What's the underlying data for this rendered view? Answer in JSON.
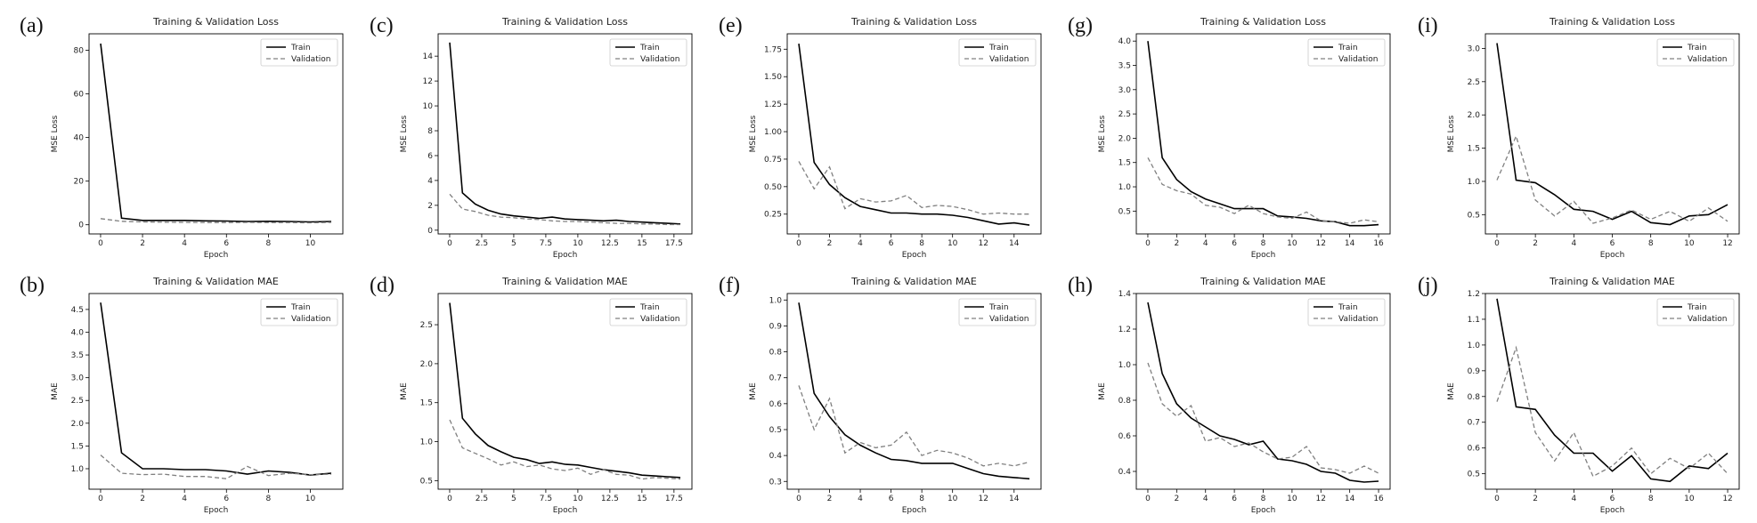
{
  "chart_data": [
    {
      "panel": "(a)",
      "type": "line",
      "title": "Training & Validation Loss",
      "xlabel": "Epoch",
      "ylabel": "MSE Loss",
      "xlim": [
        -0.55,
        11.55
      ],
      "ylim": [
        -4.2,
        87.5
      ],
      "xticks": [
        0,
        2,
        4,
        6,
        8,
        10
      ],
      "yticks": [
        0,
        20,
        40,
        60,
        80
      ],
      "tick_decimals": 0,
      "x": [
        0,
        1,
        2,
        3,
        4,
        5,
        6,
        7,
        8,
        9,
        10,
        11
      ],
      "series": [
        {
          "name": "Train",
          "style": "solid",
          "color": "#000000",
          "values": [
            83,
            3,
            2,
            2,
            2,
            1.8,
            1.7,
            1.5,
            1.6,
            1.5,
            1.3,
            1.5
          ]
        },
        {
          "name": "Validation",
          "style": "dashed",
          "color": "#808080",
          "values": [
            2.8,
            1.6,
            1.3,
            1.2,
            1.1,
            1.0,
            1.0,
            1.1,
            1.0,
            1.0,
            0.9,
            1.1
          ]
        }
      ],
      "legend": "top-right",
      "grid": false
    },
    {
      "panel": "(b)",
      "type": "line",
      "title": "Training & Validation MAE",
      "xlabel": "Epoch",
      "ylabel": "MAE",
      "xlim": [
        -0.55,
        11.55
      ],
      "ylim": [
        0.55,
        4.85
      ],
      "xticks": [
        0,
        2,
        4,
        6,
        8,
        10
      ],
      "yticks": [
        1.0,
        1.5,
        2.0,
        2.5,
        3.0,
        3.5,
        4.0,
        4.5
      ],
      "tick_decimals": 1,
      "x": [
        0,
        1,
        2,
        3,
        4,
        5,
        6,
        7,
        8,
        9,
        10,
        11
      ],
      "series": [
        {
          "name": "Train",
          "style": "solid",
          "color": "#000000",
          "values": [
            4.65,
            1.35,
            1.0,
            1.0,
            0.98,
            0.98,
            0.95,
            0.88,
            0.95,
            0.92,
            0.86,
            0.9
          ]
        },
        {
          "name": "Validation",
          "style": "dashed",
          "color": "#808080",
          "values": [
            1.3,
            0.9,
            0.87,
            0.88,
            0.83,
            0.83,
            0.78,
            1.05,
            0.85,
            0.9,
            0.87,
            0.88
          ]
        }
      ],
      "legend": "top-right",
      "grid": false
    },
    {
      "panel": "(c)",
      "type": "line",
      "title": "Training & Validation Loss",
      "xlabel": "Epoch",
      "ylabel": "MSE Loss",
      "xlim": [
        -0.9,
        18.9
      ],
      "ylim": [
        -0.3,
        15.8
      ],
      "xticks": [
        0,
        2.5,
        5,
        7.5,
        10,
        12.5,
        15,
        17.5
      ],
      "yticks": [
        0,
        2,
        4,
        6,
        8,
        10,
        12,
        14
      ],
      "tick_decimals": 0,
      "x": [
        0,
        1,
        2,
        3,
        4,
        5,
        6,
        7,
        8,
        9,
        10,
        11,
        12,
        13,
        14,
        15,
        16,
        17,
        18
      ],
      "series": [
        {
          "name": "Train",
          "style": "solid",
          "color": "#000000",
          "values": [
            15.1,
            3.0,
            2.1,
            1.6,
            1.3,
            1.15,
            1.05,
            0.95,
            1.05,
            0.9,
            0.85,
            0.8,
            0.75,
            0.8,
            0.7,
            0.65,
            0.6,
            0.55,
            0.5
          ]
        },
        {
          "name": "Validation",
          "style": "dashed",
          "color": "#808080",
          "values": [
            2.9,
            1.7,
            1.5,
            1.2,
            1.05,
            1.0,
            0.9,
            0.85,
            0.75,
            0.7,
            0.7,
            0.65,
            0.6,
            0.55,
            0.55,
            0.5,
            0.5,
            0.45,
            0.45
          ]
        }
      ],
      "legend": "top-right",
      "grid": false
    },
    {
      "panel": "(d)",
      "type": "line",
      "title": "Training & Validation MAE",
      "xlabel": "Epoch",
      "ylabel": "MAE",
      "xlim": [
        -0.9,
        18.9
      ],
      "ylim": [
        0.39,
        2.9
      ],
      "xticks": [
        0,
        2.5,
        5,
        7.5,
        10,
        12.5,
        15,
        17.5
      ],
      "yticks": [
        0.5,
        1.0,
        1.5,
        2.0,
        2.5
      ],
      "tick_decimals": 1,
      "x": [
        0,
        1,
        2,
        3,
        4,
        5,
        6,
        7,
        8,
        9,
        10,
        11,
        12,
        13,
        14,
        15,
        16,
        17,
        18
      ],
      "series": [
        {
          "name": "Train",
          "style": "solid",
          "color": "#000000",
          "values": [
            2.78,
            1.3,
            1.1,
            0.95,
            0.87,
            0.8,
            0.77,
            0.72,
            0.74,
            0.71,
            0.7,
            0.67,
            0.64,
            0.62,
            0.6,
            0.57,
            0.56,
            0.55,
            0.54
          ]
        },
        {
          "name": "Validation",
          "style": "dashed",
          "color": "#808080",
          "values": [
            1.28,
            0.92,
            0.85,
            0.78,
            0.7,
            0.74,
            0.68,
            0.7,
            0.65,
            0.63,
            0.66,
            0.58,
            0.64,
            0.58,
            0.57,
            0.52,
            0.54,
            0.53,
            0.52
          ]
        }
      ],
      "legend": "top-right",
      "grid": false
    },
    {
      "panel": "(e)",
      "type": "line",
      "title": "Training & Validation Loss",
      "xlabel": "Epoch",
      "ylabel": "MSE Loss",
      "xlim": [
        -0.75,
        15.75
      ],
      "ylim": [
        0.07,
        1.89
      ],
      "xticks": [
        0,
        2,
        4,
        6,
        8,
        10,
        12,
        14
      ],
      "yticks": [
        0.25,
        0.5,
        0.75,
        1.0,
        1.25,
        1.5,
        1.75
      ],
      "tick_decimals": 2,
      "x": [
        0,
        1,
        2,
        3,
        4,
        5,
        6,
        7,
        8,
        9,
        10,
        11,
        12,
        13,
        14,
        15
      ],
      "series": [
        {
          "name": "Train",
          "style": "solid",
          "color": "#000000",
          "values": [
            1.8,
            0.72,
            0.52,
            0.4,
            0.32,
            0.29,
            0.26,
            0.26,
            0.25,
            0.25,
            0.24,
            0.22,
            0.19,
            0.16,
            0.17,
            0.15
          ]
        },
        {
          "name": "Validation",
          "style": "dashed",
          "color": "#808080",
          "values": [
            0.73,
            0.48,
            0.68,
            0.3,
            0.39,
            0.36,
            0.37,
            0.42,
            0.31,
            0.33,
            0.32,
            0.29,
            0.25,
            0.26,
            0.25,
            0.25
          ]
        }
      ],
      "legend": "top-right",
      "grid": false
    },
    {
      "panel": "(f)",
      "type": "line",
      "title": "Training & Validation MAE",
      "xlabel": "Epoch",
      "ylabel": "MAE",
      "xlim": [
        -0.75,
        15.75
      ],
      "ylim": [
        0.27,
        1.025
      ],
      "xticks": [
        0,
        2,
        4,
        6,
        8,
        10,
        12,
        14
      ],
      "yticks": [
        0.3,
        0.4,
        0.5,
        0.6,
        0.7,
        0.8,
        0.9,
        1.0
      ],
      "tick_decimals": 1,
      "x": [
        0,
        1,
        2,
        3,
        4,
        5,
        6,
        7,
        8,
        9,
        10,
        11,
        12,
        13,
        14,
        15
      ],
      "series": [
        {
          "name": "Train",
          "style": "solid",
          "color": "#000000",
          "values": [
            0.99,
            0.64,
            0.55,
            0.48,
            0.44,
            0.41,
            0.385,
            0.38,
            0.37,
            0.37,
            0.37,
            0.35,
            0.33,
            0.32,
            0.315,
            0.31
          ]
        },
        {
          "name": "Validation",
          "style": "dashed",
          "color": "#808080",
          "values": [
            0.67,
            0.5,
            0.62,
            0.41,
            0.45,
            0.43,
            0.44,
            0.49,
            0.4,
            0.42,
            0.41,
            0.39,
            0.36,
            0.37,
            0.36,
            0.375
          ]
        }
      ],
      "legend": "top-right",
      "grid": false
    },
    {
      "panel": "(g)",
      "type": "line",
      "title": "Training & Validation Loss",
      "xlabel": "Epoch",
      "ylabel": "MSE Loss",
      "xlim": [
        -0.8,
        16.8
      ],
      "ylim": [
        0.03,
        4.15
      ],
      "xticks": [
        0,
        2,
        4,
        6,
        8,
        10,
        12,
        14,
        16
      ],
      "yticks": [
        0.5,
        1.0,
        1.5,
        2.0,
        2.5,
        3.0,
        3.5,
        4.0
      ],
      "tick_decimals": 1,
      "x": [
        0,
        1,
        2,
        3,
        4,
        5,
        6,
        7,
        8,
        9,
        10,
        11,
        12,
        13,
        14,
        15,
        16
      ],
      "series": [
        {
          "name": "Train",
          "style": "solid",
          "color": "#000000",
          "values": [
            4.0,
            1.6,
            1.15,
            0.9,
            0.75,
            0.65,
            0.55,
            0.55,
            0.55,
            0.4,
            0.38,
            0.35,
            0.3,
            0.28,
            0.2,
            0.2,
            0.22
          ]
        },
        {
          "name": "Validation",
          "style": "dashed",
          "color": "#808080",
          "values": [
            1.6,
            1.05,
            0.92,
            0.85,
            0.62,
            0.58,
            0.45,
            0.62,
            0.45,
            0.38,
            0.35,
            0.48,
            0.3,
            0.28,
            0.25,
            0.32,
            0.28
          ]
        }
      ],
      "legend": "top-right",
      "grid": false
    },
    {
      "panel": "(h)",
      "type": "line",
      "title": "Training & Validation MAE",
      "xlabel": "Epoch",
      "ylabel": "MAE",
      "xlim": [
        -0.8,
        16.8
      ],
      "ylim": [
        0.3,
        1.4
      ],
      "xticks": [
        0,
        2,
        4,
        6,
        8,
        10,
        12,
        14,
        16
      ],
      "yticks": [
        0.4,
        0.6,
        0.8,
        1.0,
        1.2,
        1.4
      ],
      "tick_decimals": 1,
      "x": [
        0,
        1,
        2,
        3,
        4,
        5,
        6,
        7,
        8,
        9,
        10,
        11,
        12,
        13,
        14,
        15,
        16
      ],
      "series": [
        {
          "name": "Train",
          "style": "solid",
          "color": "#000000",
          "values": [
            1.35,
            0.95,
            0.78,
            0.7,
            0.65,
            0.6,
            0.58,
            0.55,
            0.57,
            0.47,
            0.46,
            0.44,
            0.4,
            0.39,
            0.35,
            0.34,
            0.345
          ]
        },
        {
          "name": "Validation",
          "style": "dashed",
          "color": "#808080",
          "values": [
            1.01,
            0.78,
            0.71,
            0.77,
            0.57,
            0.59,
            0.54,
            0.56,
            0.51,
            0.47,
            0.48,
            0.54,
            0.42,
            0.41,
            0.39,
            0.43,
            0.39
          ]
        }
      ],
      "legend": "top-right",
      "grid": false
    },
    {
      "panel": "(i)",
      "type": "line",
      "title": "Training & Validation Loss",
      "xlabel": "Epoch",
      "ylabel": "MSE Loss",
      "xlim": [
        -0.6,
        12.6
      ],
      "ylim": [
        0.21,
        3.22
      ],
      "xticks": [
        0,
        2,
        4,
        6,
        8,
        10,
        12
      ],
      "yticks": [
        0.5,
        1.0,
        1.5,
        2.0,
        2.5,
        3.0
      ],
      "tick_decimals": 1,
      "x": [
        0,
        1,
        2,
        3,
        4,
        5,
        6,
        7,
        8,
        9,
        10,
        11,
        12
      ],
      "series": [
        {
          "name": "Train",
          "style": "solid",
          "color": "#000000",
          "values": [
            3.08,
            1.02,
            0.98,
            0.8,
            0.58,
            0.55,
            0.43,
            0.55,
            0.38,
            0.35,
            0.48,
            0.5,
            0.65
          ]
        },
        {
          "name": "Validation",
          "style": "dashed",
          "color": "#808080",
          "values": [
            1.02,
            1.68,
            0.72,
            0.48,
            0.7,
            0.37,
            0.45,
            0.57,
            0.43,
            0.55,
            0.4,
            0.6,
            0.4
          ]
        }
      ],
      "legend": "top-right",
      "grid": false
    },
    {
      "panel": "(j)",
      "type": "line",
      "title": "Training & Validation MAE",
      "xlabel": "Epoch",
      "ylabel": "MAE",
      "xlim": [
        -0.6,
        12.6
      ],
      "ylim": [
        0.44,
        1.2
      ],
      "xticks": [
        0,
        2,
        4,
        6,
        8,
        10,
        12
      ],
      "yticks": [
        0.5,
        0.6,
        0.7,
        0.8,
        0.9,
        1.0,
        1.1,
        1.2
      ],
      "tick_decimals": 1,
      "x": [
        0,
        1,
        2,
        3,
        4,
        5,
        6,
        7,
        8,
        9,
        10,
        11,
        12
      ],
      "series": [
        {
          "name": "Train",
          "style": "solid",
          "color": "#000000",
          "values": [
            1.18,
            0.76,
            0.75,
            0.65,
            0.58,
            0.58,
            0.51,
            0.57,
            0.48,
            0.47,
            0.53,
            0.52,
            0.58
          ]
        },
        {
          "name": "Validation",
          "style": "dashed",
          "color": "#808080",
          "values": [
            0.78,
            0.99,
            0.66,
            0.55,
            0.66,
            0.49,
            0.53,
            0.6,
            0.5,
            0.56,
            0.52,
            0.58,
            0.5
          ]
        }
      ],
      "legend": "top-right",
      "grid": false
    }
  ]
}
